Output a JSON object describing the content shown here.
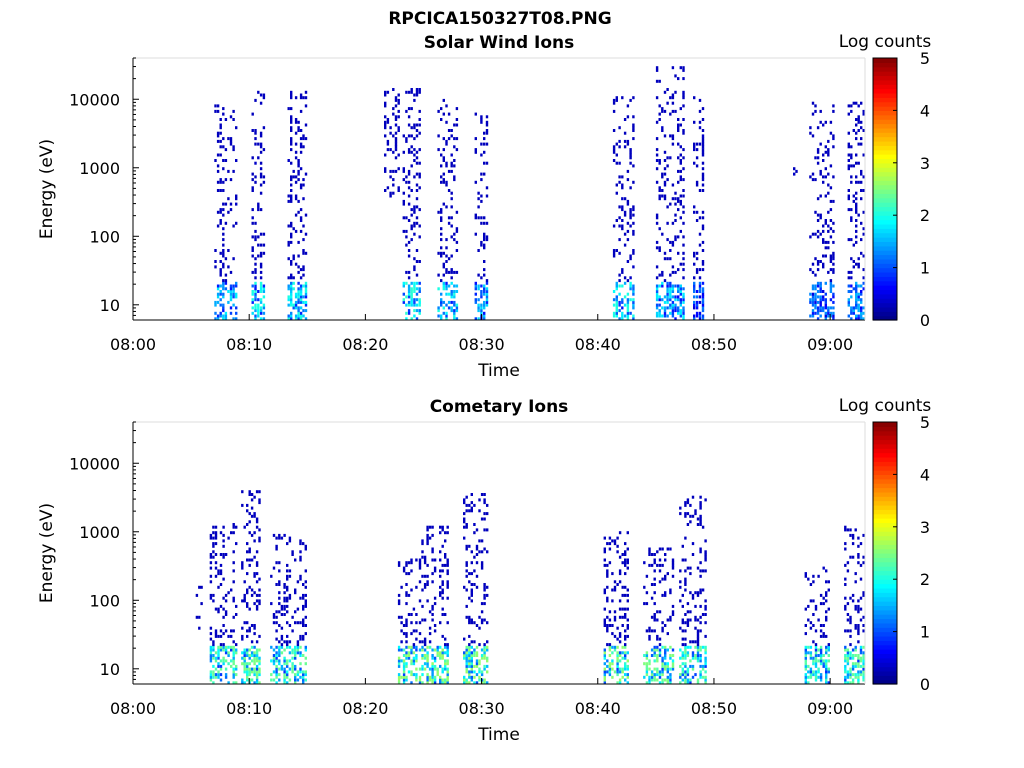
{
  "figure": {
    "title": "RPCICA150327T08.PNG"
  },
  "chart_data": [
    {
      "type": "heatmap",
      "title": "Solar Wind Ions",
      "xlabel": "Time",
      "ylabel": "Energy (eV)",
      "x_tick_labels": [
        "08:00",
        "08:10",
        "08:20",
        "08:30",
        "08:40",
        "08:50",
        "09:00"
      ],
      "x_range_minutes": [
        0,
        63
      ],
      "y_scale": "log",
      "y_tick_labels": [
        "10",
        "100",
        "1000",
        "10000"
      ],
      "y_range": [
        6,
        40000
      ],
      "colorbar": {
        "label": "Log counts",
        "range": [
          0,
          5
        ],
        "tick_labels": [
          "0",
          "1",
          "2",
          "3",
          "4",
          "5"
        ],
        "colormap": "jet"
      },
      "bursts": [
        {
          "t_start_min": 7.0,
          "t_end_min": 9.0,
          "e_min": 6,
          "e_max": 9000,
          "peak_log_counts": 1.8
        },
        {
          "t_start_min": 10.2,
          "t_end_min": 11.4,
          "e_min": 6,
          "e_max": 15000,
          "peak_log_counts": 2.0
        },
        {
          "t_start_min": 13.3,
          "t_end_min": 15.0,
          "e_min": 6,
          "e_max": 13000,
          "peak_log_counts": 2.0
        },
        {
          "t_start_min": 21.6,
          "t_end_min": 23.0,
          "e_min": 400,
          "e_max": 15000,
          "peak_log_counts": 0.3
        },
        {
          "t_start_min": 23.2,
          "t_end_min": 24.8,
          "e_min": 6,
          "e_max": 15000,
          "peak_log_counts": 2.1
        },
        {
          "t_start_min": 26.2,
          "t_end_min": 28.0,
          "e_min": 6,
          "e_max": 10000,
          "peak_log_counts": 2.0
        },
        {
          "t_start_min": 29.4,
          "t_end_min": 30.6,
          "e_min": 6,
          "e_max": 8000,
          "peak_log_counts": 1.7
        },
        {
          "t_start_min": 41.3,
          "t_end_min": 43.2,
          "e_min": 6,
          "e_max": 11000,
          "peak_log_counts": 2.0
        },
        {
          "t_start_min": 45.0,
          "t_end_min": 47.5,
          "e_min": 6,
          "e_max": 30000,
          "peak_log_counts": 1.8
        },
        {
          "t_start_min": 48.2,
          "t_end_min": 49.2,
          "e_min": 6,
          "e_max": 12000,
          "peak_log_counts": 1.2
        },
        {
          "t_start_min": 56.8,
          "t_end_min": 57.2,
          "e_min": 700,
          "e_max": 1100,
          "peak_log_counts": 1.5
        },
        {
          "t_start_min": 58.2,
          "t_end_min": 60.4,
          "e_min": 6,
          "e_max": 9000,
          "peak_log_counts": 1.3
        },
        {
          "t_start_min": 61.5,
          "t_end_min": 63.0,
          "e_min": 6,
          "e_max": 9000,
          "peak_log_counts": 1.5
        }
      ]
    },
    {
      "type": "heatmap",
      "title": "Cometary Ions",
      "xlabel": "Time",
      "ylabel": "Energy (eV)",
      "x_tick_labels": [
        "08:00",
        "08:10",
        "08:20",
        "08:30",
        "08:40",
        "08:50",
        "09:00"
      ],
      "x_range_minutes": [
        0,
        63
      ],
      "y_scale": "log",
      "y_tick_labels": [
        "10",
        "100",
        "1000",
        "10000"
      ],
      "y_range": [
        6,
        40000
      ],
      "colorbar": {
        "label": "Log counts",
        "range": [
          0,
          5
        ],
        "tick_labels": [
          "0",
          "1",
          "2",
          "3",
          "4",
          "5"
        ],
        "colormap": "jet"
      },
      "bursts": [
        {
          "t_start_min": 5.4,
          "t_end_min": 6.0,
          "e_min": 40,
          "e_max": 200,
          "peak_log_counts": 0.6
        },
        {
          "t_start_min": 6.6,
          "t_end_min": 9.0,
          "e_min": 6,
          "e_max": 1300,
          "peak_log_counts": 2.4
        },
        {
          "t_start_min": 9.3,
          "t_end_min": 11.0,
          "e_min": 6,
          "e_max": 4000,
          "peak_log_counts": 2.5
        },
        {
          "t_start_min": 11.8,
          "t_end_min": 15.0,
          "e_min": 6,
          "e_max": 1000,
          "peak_log_counts": 2.4
        },
        {
          "t_start_min": 22.8,
          "t_end_min": 24.5,
          "e_min": 6,
          "e_max": 400,
          "peak_log_counts": 2.6
        },
        {
          "t_start_min": 24.6,
          "t_end_min": 27.2,
          "e_min": 6,
          "e_max": 1200,
          "peak_log_counts": 2.6
        },
        {
          "t_start_min": 28.4,
          "t_end_min": 30.6,
          "e_min": 6,
          "e_max": 3800,
          "peak_log_counts": 2.6
        },
        {
          "t_start_min": 40.5,
          "t_end_min": 42.7,
          "e_min": 6,
          "e_max": 1000,
          "peak_log_counts": 2.6
        },
        {
          "t_start_min": 43.9,
          "t_end_min": 46.6,
          "e_min": 6,
          "e_max": 600,
          "peak_log_counts": 2.5
        },
        {
          "t_start_min": 47.0,
          "t_end_min": 49.4,
          "e_min": 6,
          "e_max": 3500,
          "peak_log_counts": 2.4
        },
        {
          "t_start_min": 57.0,
          "t_end_min": 57.5,
          "e_min": 250,
          "e_max": 300,
          "peak_log_counts": 0.3
        },
        {
          "t_start_min": 57.8,
          "t_end_min": 60.0,
          "e_min": 6,
          "e_max": 300,
          "peak_log_counts": 2.3
        },
        {
          "t_start_min": 61.2,
          "t_end_min": 63.0,
          "e_min": 6,
          "e_max": 1400,
          "peak_log_counts": 2.4
        }
      ]
    }
  ]
}
